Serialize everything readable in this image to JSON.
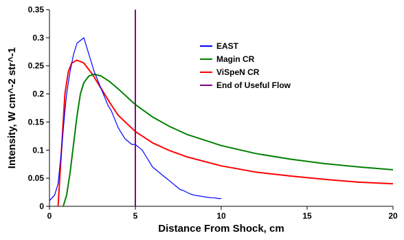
{
  "chart_data": {
    "type": "line",
    "xlabel": "Distance From Shock, cm",
    "ylabel": "Intensity, W cm^-2 str^-1",
    "xlim": [
      0,
      20
    ],
    "ylim": [
      0,
      0.35
    ],
    "x_ticks": [
      0,
      5,
      10,
      15,
      20
    ],
    "y_ticks": [
      0,
      0.05,
      0.1,
      0.15,
      0.2,
      0.25,
      0.3,
      0.35
    ],
    "y_tick_labels": [
      "0",
      "0.05",
      "0.1",
      "0.15",
      "0.2",
      "0.25",
      "0.3",
      "0.35"
    ],
    "grid": false,
    "legend_position": "upper-right",
    "series": [
      {
        "name": "EAST",
        "color": "#0000ff",
        "x": [
          0,
          0.3,
          0.5,
          0.7,
          0.9,
          1.0,
          1.2,
          1.4,
          1.6,
          1.8,
          2.0,
          2.2,
          2.4,
          2.6,
          2.8,
          3.0,
          3.2,
          3.4,
          3.6,
          3.8,
          4.0,
          4.2,
          4.4,
          4.6,
          4.8,
          5.0,
          5.2,
          5.4,
          5.6,
          5.8,
          6.0,
          6.2,
          6.4,
          6.6,
          6.8,
          7.0,
          7.2,
          7.4,
          7.6,
          7.8,
          8.0,
          8.2,
          8.4,
          8.6,
          8.8,
          9.0,
          9.2,
          9.4,
          9.6,
          9.8,
          10.0
        ],
        "y": [
          0.01,
          0.02,
          0.04,
          0.1,
          0.17,
          0.2,
          0.24,
          0.27,
          0.29,
          0.295,
          0.3,
          0.28,
          0.26,
          0.24,
          0.225,
          0.21,
          0.195,
          0.18,
          0.17,
          0.155,
          0.14,
          0.13,
          0.12,
          0.115,
          0.11,
          0.11,
          0.105,
          0.1,
          0.09,
          0.08,
          0.07,
          0.065,
          0.06,
          0.055,
          0.05,
          0.045,
          0.04,
          0.035,
          0.03,
          0.028,
          0.025,
          0.022,
          0.02,
          0.019,
          0.018,
          0.017,
          0.016,
          0.015,
          0.015,
          0.014,
          0.014
        ]
      },
      {
        "name": "Magin CR",
        "color": "#008000",
        "x": [
          0.8,
          1.0,
          1.2,
          1.4,
          1.6,
          1.8,
          2.0,
          2.3,
          2.6,
          3.0,
          3.5,
          4.0,
          5.0,
          6.0,
          7.0,
          8.0,
          10.0,
          12.0,
          14.0,
          16.0,
          18.0,
          20.0
        ],
        "y": [
          0.0,
          0.02,
          0.06,
          0.11,
          0.16,
          0.2,
          0.22,
          0.232,
          0.235,
          0.232,
          0.222,
          0.209,
          0.181,
          0.159,
          0.142,
          0.128,
          0.108,
          0.094,
          0.084,
          0.076,
          0.07,
          0.065
        ]
      },
      {
        "name": "ViSpeN CR",
        "color": "#ff0000",
        "x": [
          0.5,
          0.7,
          0.9,
          1.1,
          1.3,
          1.6,
          2.0,
          2.5,
          3.0,
          3.5,
          4.0,
          5.0,
          6.0,
          7.0,
          8.0,
          10.0,
          12.0,
          14.0,
          16.0,
          18.0,
          20.0
        ],
        "y": [
          0.0,
          0.1,
          0.2,
          0.24,
          0.255,
          0.26,
          0.255,
          0.235,
          0.21,
          0.185,
          0.162,
          0.133,
          0.113,
          0.099,
          0.088,
          0.072,
          0.061,
          0.054,
          0.048,
          0.043,
          0.04
        ]
      },
      {
        "name": "End of Useful Flow",
        "color": "#800080",
        "x": [
          5,
          5
        ],
        "y": [
          0,
          0.35
        ]
      }
    ]
  }
}
